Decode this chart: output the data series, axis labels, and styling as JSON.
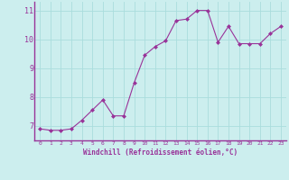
{
  "x": [
    0,
    1,
    2,
    3,
    4,
    5,
    6,
    7,
    8,
    9,
    10,
    11,
    12,
    13,
    14,
    15,
    16,
    17,
    18,
    19,
    20,
    21,
    22,
    23
  ],
  "y": [
    6.9,
    6.85,
    6.85,
    6.9,
    7.2,
    7.55,
    7.9,
    7.35,
    7.35,
    8.5,
    9.45,
    9.75,
    9.95,
    10.65,
    10.7,
    11.0,
    11.0,
    9.9,
    10.45,
    9.85,
    9.85,
    9.85,
    10.2,
    10.45
  ],
  "line_color": "#993399",
  "marker": "D",
  "marker_size": 2,
  "bg_color": "#cceeee",
  "grid_color": "#aadddd",
  "xlabel": "Windchill (Refroidissement éolien,°C)",
  "xlabel_color": "#993399",
  "tick_color": "#993399",
  "ylim": [
    6.5,
    11.3
  ],
  "xlim": [
    -0.5,
    23.5
  ],
  "yticks": [
    7,
    8,
    9,
    10,
    11
  ],
  "xticks": [
    0,
    1,
    2,
    3,
    4,
    5,
    6,
    7,
    8,
    9,
    10,
    11,
    12,
    13,
    14,
    15,
    16,
    17,
    18,
    19,
    20,
    21,
    22,
    23
  ]
}
